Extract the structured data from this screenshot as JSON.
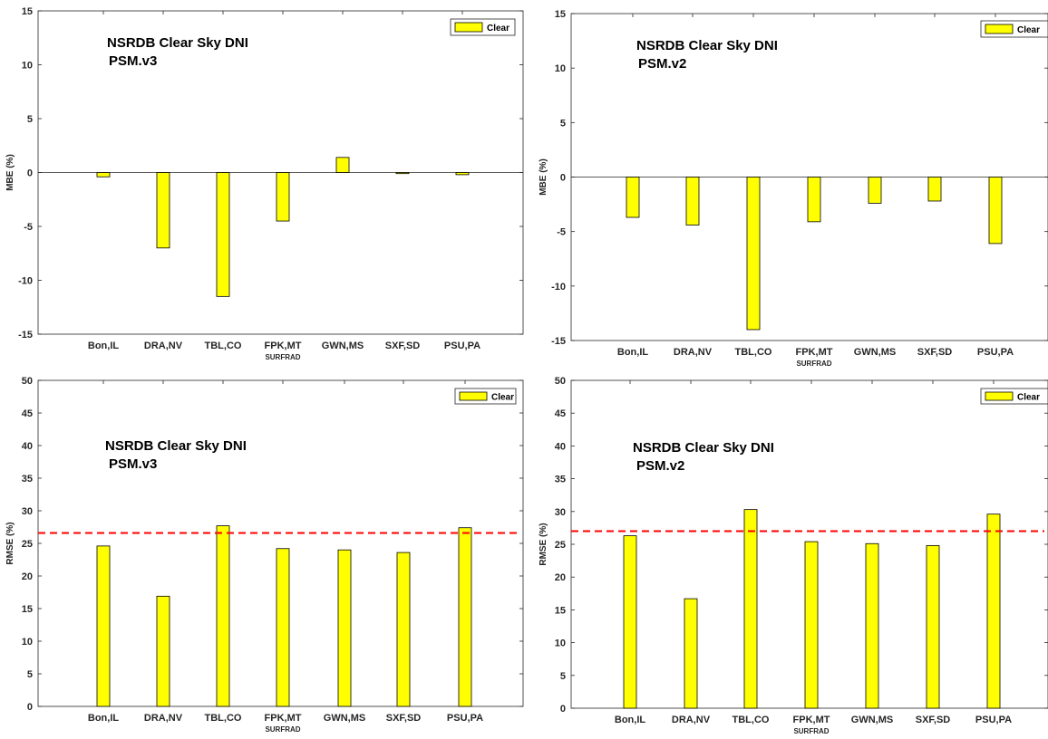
{
  "colors": {
    "bar": "#ffff00",
    "bar_edge": "#000000",
    "axis": "#262626",
    "reference_line": "#ff0000"
  },
  "chart_data": [
    {
      "type": "bar",
      "title": "",
      "annotation": [
        "NSRDB Clear Sky DNI",
        "PSM.v3"
      ],
      "ylabel": "MBE (%)",
      "xlabel": "SURFRAD",
      "ylim": [
        -15,
        15
      ],
      "yticks": [
        -15,
        -10,
        -5,
        0,
        5,
        10,
        15
      ],
      "categories": [
        "Bon,IL",
        "DRA,NV",
        "TBL,CO",
        "FPK,MT",
        "GWN,MS",
        "SXF,SD",
        "PSU,PA"
      ],
      "series": [
        {
          "name": "Clear",
          "values": [
            -0.4,
            -7.0,
            -11.5,
            -4.5,
            1.4,
            -0.1,
            -0.2
          ]
        }
      ],
      "legend": "top-right",
      "grid": false
    },
    {
      "type": "bar",
      "title": "",
      "annotation": [
        "NSRDB Clear Sky DNI",
        "PSM.v2"
      ],
      "ylabel": "MBE (%)",
      "xlabel": "SURFRAD",
      "ylim": [
        -15,
        15
      ],
      "yticks": [
        -15,
        -10,
        -5,
        0,
        5,
        10,
        15
      ],
      "categories": [
        "Bon,IL",
        "DRA,NV",
        "TBL,CO",
        "FPK,MT",
        "GWN,MS",
        "SXF,SD",
        "PSU,PA"
      ],
      "series": [
        {
          "name": "Clear",
          "values": [
            -3.7,
            -4.4,
            -14.0,
            -4.1,
            -2.4,
            -2.2,
            -6.1
          ]
        }
      ],
      "legend": "top-right",
      "grid": false
    },
    {
      "type": "bar",
      "title": "",
      "annotation": [
        "NSRDB Clear Sky DNI",
        "PSM.v3"
      ],
      "ylabel": "RMSE (%)",
      "xlabel": "SURFRAD",
      "ylim": [
        0,
        50
      ],
      "yticks": [
        0,
        5,
        10,
        15,
        20,
        25,
        30,
        35,
        40,
        45,
        50
      ],
      "categories": [
        "Bon,IL",
        "DRA,NV",
        "TBL,CO",
        "FPK,MT",
        "GWN,MS",
        "SXF,SD",
        "PSU,PA"
      ],
      "series": [
        {
          "name": "Clear",
          "values": [
            24.6,
            16.9,
            27.7,
            24.2,
            24.0,
            23.6,
            27.4
          ]
        }
      ],
      "reference_line": 26.6,
      "legend": "top-right",
      "grid": false
    },
    {
      "type": "bar",
      "title": "",
      "annotation": [
        "NSRDB Clear Sky DNI",
        "PSM.v2"
      ],
      "ylabel": "RMSE (%)",
      "xlabel": "SURFRAD",
      "ylim": [
        0,
        50
      ],
      "yticks": [
        0,
        5,
        10,
        15,
        20,
        25,
        30,
        35,
        40,
        45,
        50
      ],
      "categories": [
        "Bon,IL",
        "DRA,NV",
        "TBL,CO",
        "FPK,MT",
        "GWN,MS",
        "SXF,SD",
        "PSU,PA"
      ],
      "series": [
        {
          "name": "Clear",
          "values": [
            26.3,
            16.7,
            30.3,
            25.4,
            25.1,
            24.8,
            29.6
          ]
        }
      ],
      "reference_line": 27.0,
      "legend": "top-right",
      "grid": false
    }
  ]
}
